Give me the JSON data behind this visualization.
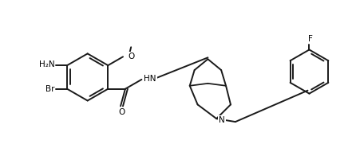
{
  "bg_color": "#ffffff",
  "line_color": "#1a1a1a",
  "lw": 1.4,
  "fs": 7.5,
  "figsize": [
    4.41,
    1.86
  ],
  "dpi": 100,
  "atoms": {
    "NH2": "H₂N",
    "Br": "Br",
    "O_co": "O",
    "O_me": "O",
    "NH": "HN",
    "N": "N",
    "F": "F"
  }
}
